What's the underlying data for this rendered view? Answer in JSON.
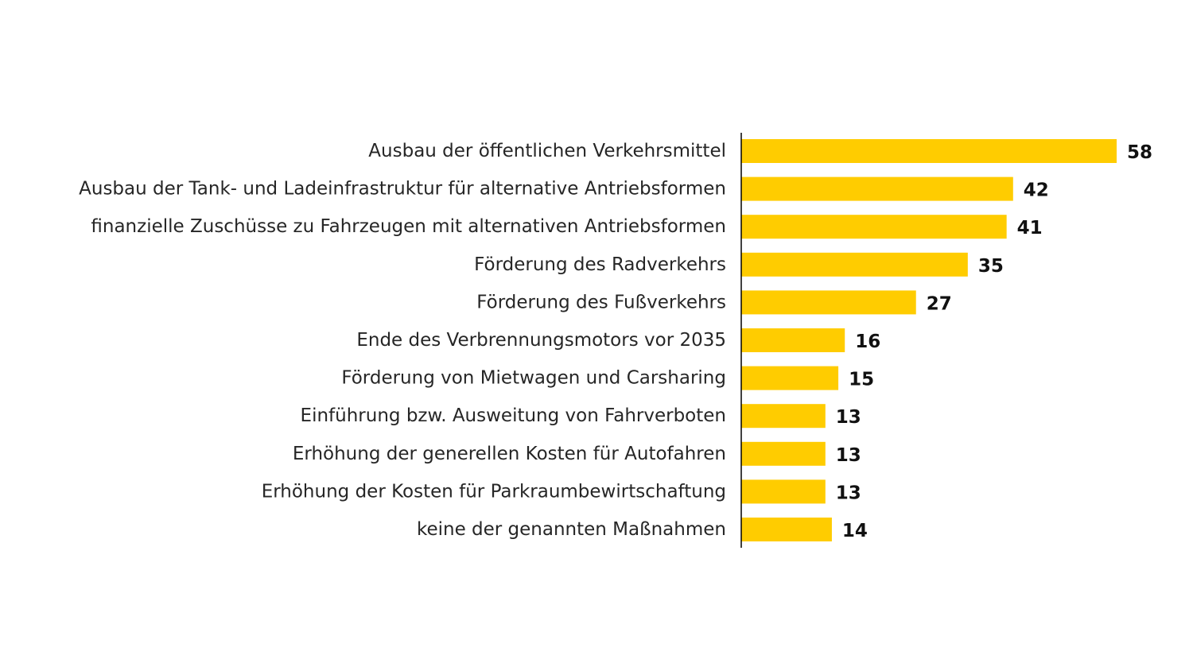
{
  "chart_data": {
    "type": "bar",
    "orientation": "horizontal",
    "categories": [
      "Ausbau der öffentlichen Verkehrsmittel",
      "Ausbau der Tank- und Ladeinfrastruktur für alternative Antriebsformen",
      "finanzielle Zuschüsse zu Fahrzeugen mit alternativen Antriebsformen",
      "Förderung des Radverkehrs",
      "Förderung des Fußverkehrs",
      "Ende des Verbrennungsmotors vor 2035",
      "Förderung von Mietwagen und Carsharing",
      "Einführung bzw. Ausweitung von Fahrverboten",
      "Erhöhung der generellen Kosten für Autofahren",
      "Erhöhung der Kosten für Parkraumbewirtschaftung",
      "keine der genannten Maßnahmen"
    ],
    "values": [
      58,
      42,
      41,
      35,
      27,
      16,
      15,
      13,
      13,
      13,
      14
    ],
    "value_labels": [
      "58",
      "42",
      "41",
      "35",
      "27",
      "16",
      "15",
      "13",
      "13",
      "13",
      "14"
    ],
    "bar_color": "#FFCC00",
    "axis_color": "#000000",
    "xlim": [
      0,
      58
    ],
    "grid": false,
    "legend": "none",
    "title": "",
    "xlabel": "",
    "ylabel": ""
  }
}
